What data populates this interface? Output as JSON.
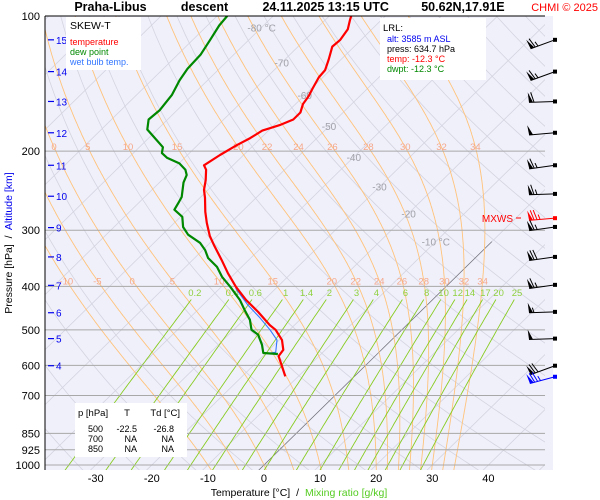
{
  "header": {
    "station": "Praha-Libus",
    "mode": "descent",
    "datetime": "24.11.2025 13:15 UTC",
    "coords": "50.62N,17.91E",
    "credit": "CHMI © 2025"
  },
  "legend": {
    "title": "SKEW-T",
    "items": [
      {
        "label": "temperature",
        "color": "#ff0000"
      },
      {
        "label": "dew point",
        "color": "#008800"
      },
      {
        "label": "wet bulb temp.",
        "color": "#3377ff"
      }
    ]
  },
  "lrl": {
    "title": "LRL:",
    "alt_label": "alt:",
    "alt_value": "3585 m ASL",
    "press_label": "press:",
    "press_value": "634.7 hPa",
    "temp_label": "temp:",
    "temp_value": "-12.3 °C",
    "dwpt_label": "dwpt:",
    "dwpt_value": "-12.3 °C"
  },
  "table": {
    "headers": [
      "p [hPa]",
      "T",
      "Td [°C]"
    ],
    "rows": [
      [
        "500",
        "-22.5",
        "-26.8"
      ],
      [
        "700",
        "NA",
        "NA"
      ],
      [
        "850",
        "NA",
        "NA"
      ]
    ]
  },
  "mxws_label": "MXWS",
  "chart_data": {
    "type": "line",
    "subtype": "skew-t log-p",
    "xlabel": "Temperature [°C]",
    "xlabel_sep": "/",
    "xlabel2": "Mixing ratio [g/kg]",
    "ylabel": "Pressure [hPa]",
    "ylabel_sep": "/",
    "ylabel2": "Altitude [km]",
    "y_scale": "log",
    "ylim": [
      1000,
      100
    ],
    "xlim": [
      -35,
      45
    ],
    "pressure_ticks": [
      100,
      200,
      300,
      400,
      500,
      600,
      700,
      850,
      925,
      1000
    ],
    "temperature_ticks": [
      -30,
      -20,
      -10,
      0,
      10,
      20,
      30,
      40
    ],
    "altitude_ticks": [
      {
        "km": "15",
        "p": 113
      },
      {
        "km": "14",
        "p": 133
      },
      {
        "km": "13",
        "p": 155
      },
      {
        "km": "12",
        "p": 182
      },
      {
        "km": "11",
        "p": 215
      },
      {
        "km": "10",
        "p": 252
      },
      {
        "km": "9",
        "p": 296
      },
      {
        "km": "8",
        "p": 344
      },
      {
        "km": "7",
        "p": 398
      },
      {
        "km": "6",
        "p": 458
      },
      {
        "km": "5",
        "p": 523
      },
      {
        "km": "4",
        "p": 601
      }
    ],
    "isotherm_labels": [
      "-80 °C",
      "-70",
      "-60",
      "-50",
      "-40",
      "-30",
      "-20",
      "-10 °C"
    ],
    "moist_adiabat_labels": [
      "-10",
      "-5",
      "0",
      "5",
      "10",
      "15",
      "20",
      "22",
      "24",
      "26",
      "28",
      "30",
      "32",
      "34"
    ],
    "mixing_ratio_labels": [
      "0.2",
      "0.4",
      "0.6",
      "1",
      "1.4",
      "2",
      "3",
      "4",
      "6",
      "8",
      "10",
      "12",
      "14",
      "17",
      "20",
      "25"
    ],
    "colors": {
      "temperature": "#ff0000",
      "dew_point": "#008800",
      "wet_bulb": "#3377ff",
      "isobar": "#a8a8a8",
      "isotherm": "#d4d4e0",
      "dry_adiabat": "#d4d4e0",
      "moist_adiabat": "#ffc37a",
      "mixing_ratio": "#88cc22",
      "altitude": "#0000ee",
      "background": "#f0f0fb"
    },
    "series": [
      {
        "name": "temperature",
        "points_p_T": [
          [
            635,
            -12.3
          ],
          [
            602,
            -14.8
          ],
          [
            572,
            -17.2
          ],
          [
            554,
            -17.5
          ],
          [
            527,
            -19.5
          ],
          [
            500,
            -22.5
          ],
          [
            488,
            -24.4
          ],
          [
            456,
            -28.9
          ],
          [
            429,
            -33.2
          ],
          [
            401,
            -37.4
          ],
          [
            374,
            -41.3
          ],
          [
            349,
            -44.9
          ],
          [
            325,
            -48.7
          ],
          [
            309,
            -51.3
          ],
          [
            289,
            -54.2
          ],
          [
            273,
            -56.5
          ],
          [
            254,
            -59.1
          ],
          [
            244,
            -60.7
          ],
          [
            232,
            -62.2
          ],
          [
            220,
            -64.0
          ],
          [
            215,
            -65.2
          ],
          [
            204,
            -64.2
          ],
          [
            194,
            -63.0
          ],
          [
            187,
            -61.9
          ],
          [
            180,
            -61.1
          ],
          [
            175,
            -59.0
          ],
          [
            170,
            -57.6
          ],
          [
            164,
            -57.6
          ],
          [
            157,
            -58.7
          ],
          [
            151,
            -59.1
          ],
          [
            145,
            -59.8
          ],
          [
            137,
            -60.7
          ],
          [
            132,
            -60.9
          ],
          [
            125,
            -62.2
          ],
          [
            117,
            -63.9
          ],
          [
            113,
            -63.7
          ],
          [
            107,
            -64.3
          ],
          [
            102,
            -65.6
          ],
          [
            100,
            -66.1
          ]
        ]
      },
      {
        "name": "dew point",
        "points_p_T": [
          [
            566,
            -17.7
          ],
          [
            563,
            -20.5
          ],
          [
            540,
            -22.2
          ],
          [
            513,
            -24.7
          ],
          [
            500,
            -26.8
          ],
          [
            475,
            -28.9
          ],
          [
            452,
            -31.6
          ],
          [
            429,
            -34.3
          ],
          [
            401,
            -38.4
          ],
          [
            381,
            -41.7
          ],
          [
            362,
            -44.4
          ],
          [
            346,
            -47.6
          ],
          [
            332,
            -49.6
          ],
          [
            320,
            -51.8
          ],
          [
            307,
            -55.4
          ],
          [
            295,
            -57.7
          ],
          [
            280,
            -59.7
          ],
          [
            270,
            -62.4
          ],
          [
            261,
            -62.9
          ],
          [
            253,
            -63.4
          ],
          [
            235,
            -65.7
          ],
          [
            226,
            -66.5
          ],
          [
            220,
            -67.7
          ],
          [
            213,
            -69.9
          ],
          [
            207,
            -73.1
          ],
          [
            202,
            -74.9
          ],
          [
            196,
            -75.8
          ],
          [
            187,
            -78.9
          ],
          [
            179,
            -81.8
          ],
          [
            170,
            -83.4
          ],
          [
            162,
            -83.1
          ],
          [
            150,
            -83.7
          ],
          [
            139,
            -85.0
          ],
          [
            131,
            -85.7
          ],
          [
            122,
            -85.9
          ],
          [
            113,
            -86.9
          ],
          [
            105,
            -87.9
          ],
          [
            100,
            -88.2
          ]
        ]
      },
      {
        "name": "wet bulb temp.",
        "points_p_T": [
          [
            563,
            -19.3
          ],
          [
            561,
            -18.4
          ],
          [
            527,
            -20.4
          ],
          [
            500,
            -23.5
          ],
          [
            470,
            -27.5
          ],
          [
            440,
            -32.0
          ],
          [
            404,
            -37.2
          ]
        ]
      }
    ],
    "winds": [
      {
        "p": 113,
        "dir": 250,
        "kt": 65,
        "color": "#000000"
      },
      {
        "p": 133,
        "dir": 250,
        "kt": 65,
        "color": "#000000"
      },
      {
        "p": 155,
        "dir": 268,
        "kt": 60,
        "color": "#000000"
      },
      {
        "p": 182,
        "dir": 265,
        "kt": 50,
        "color": "#000000"
      },
      {
        "p": 215,
        "dir": 262,
        "kt": 65,
        "color": "#000000"
      },
      {
        "p": 249,
        "dir": 268,
        "kt": 65,
        "color": "#000000"
      },
      {
        "p": 282,
        "dir": 265,
        "kt": 75,
        "color": "#ff0000",
        "mxws": true
      },
      {
        "p": 295,
        "dir": 262,
        "kt": 65,
        "color": "#000000"
      },
      {
        "p": 344,
        "dir": 262,
        "kt": 70,
        "color": "#000000"
      },
      {
        "p": 397,
        "dir": 262,
        "kt": 65,
        "color": "#000000"
      },
      {
        "p": 456,
        "dir": 268,
        "kt": 55,
        "color": "#000000"
      },
      {
        "p": 523,
        "dir": 268,
        "kt": 50,
        "color": "#000000"
      },
      {
        "p": 601,
        "dir": 250,
        "kt": 70,
        "color": "#000000"
      },
      {
        "p": 636,
        "dir": 255,
        "kt": 75,
        "color": "#0000ff"
      }
    ]
  }
}
